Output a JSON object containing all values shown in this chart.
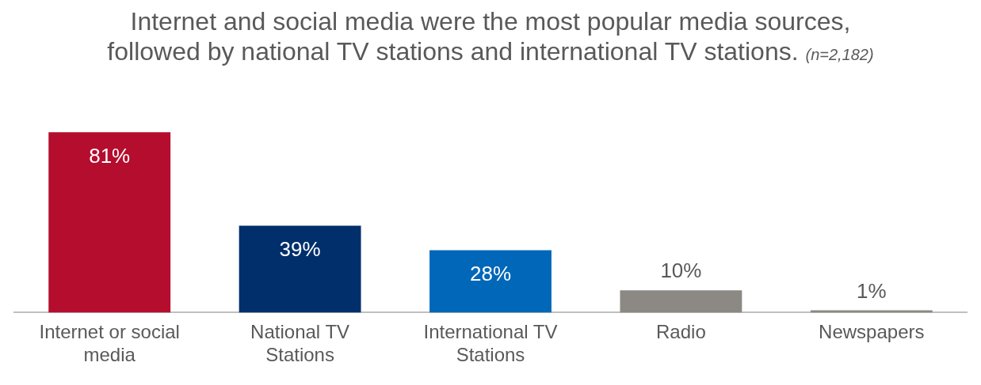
{
  "chart_data": {
    "type": "bar",
    "title": "Internet and social media were the most popular media sources, followed by national TV stations and international TV stations.",
    "subtitle": "(n=2,182)",
    "categories": [
      "Internet or social media",
      "National TV Stations",
      "International TV Stations",
      "Radio",
      "Newspapers"
    ],
    "values": [
      81,
      39,
      28,
      10,
      1
    ],
    "colors": [
      "#b50d2e",
      "#002f6c",
      "#0067b9",
      "#8c8984",
      "#8c8984"
    ],
    "value_labels": [
      "81%",
      "39%",
      "28%",
      "10%",
      "1%"
    ],
    "grid": false,
    "legend": false
  }
}
